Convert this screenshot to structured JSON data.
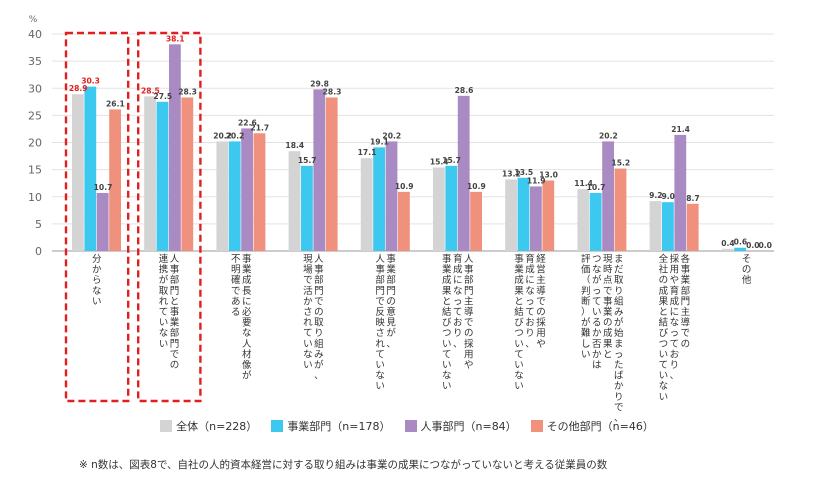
{
  "chart_data": {
    "type": "bar",
    "ylabel": "%",
    "ylim": [
      0,
      40
    ],
    "yticks": [
      0,
      5,
      10,
      15,
      20,
      25,
      30,
      35,
      40
    ],
    "categories": [
      "分からない",
      "人事部門と事業部門での連携が取れていない",
      "事業成長に必要な人材像が不明確である",
      "人事部門での取り組みが、現場で活かされていない",
      "事業部門の意見が、人事部門で反映されていない",
      "人事部門主導での採用や育成になっており、事業成果と結びついていない",
      "経営主導での採用や育成になっており、事業成果と結びついていない",
      "まだ取り組みが始まったばかりで、現時点で事業の成果とつながっているか否かは評価（判断）が難しい",
      "各事業部門主導での採用や育成になっており、全社の成果と結びついていない",
      "その他"
    ],
    "category_lines": [
      [
        "分からない"
      ],
      [
        "人事部門と事業部門での",
        "連携が取れていない"
      ],
      [
        "事業成長に必要な人材像が",
        "不明確である"
      ],
      [
        "人事部門での取り組みが、",
        "現場で活かされていない"
      ],
      [
        "事業部門の意見が、",
        "人事部門で反映されていない"
      ],
      [
        "人事部門主導での採用や",
        "育成になっており、",
        "事業成果と結びついていない"
      ],
      [
        "経営主導での採用や",
        "育成になっており、",
        "事業成果と結びついていない"
      ],
      [
        "まだ取り組みが始まったばかりで、",
        "現時点で事業の成果と",
        "つながっているか否かは",
        "評価（判断）が難しい"
      ],
      [
        "各事業部門主導での",
        "採用や育成になっており、",
        "全社の成果と結びついていない"
      ],
      [
        "その他"
      ]
    ],
    "series": [
      {
        "name": "全体（n=228）",
        "color": "#d4d4d4",
        "values": [
          28.9,
          28.5,
          20.2,
          18.4,
          17.1,
          15.4,
          13.2,
          11.4,
          9.2,
          0.4
        ]
      },
      {
        "name": "事業部門（n=178）",
        "color": "#3dc8f0",
        "values": [
          30.3,
          27.5,
          20.2,
          15.7,
          19.1,
          15.7,
          13.5,
          10.7,
          9.0,
          0.6
        ]
      },
      {
        "name": "人事部門（n=84）",
        "color": "#a98ac2",
        "values": [
          10.7,
          38.1,
          22.6,
          29.8,
          20.2,
          28.6,
          11.9,
          20.2,
          21.4,
          0.0
        ]
      },
      {
        "name": "その他部門（n=46）",
        "color": "#f0917e",
        "values": [
          26.1,
          28.3,
          21.7,
          28.3,
          10.9,
          10.9,
          13.0,
          15.2,
          8.7,
          0.0
        ]
      }
    ],
    "highlighted_labels": [
      {
        "category": 0,
        "series": 0
      },
      {
        "category": 0,
        "series": 1
      },
      {
        "category": 1,
        "series": 0
      },
      {
        "category": 1,
        "series": 2
      }
    ],
    "highlighted_categories": [
      0,
      1
    ],
    "highlight_color": "#e02020",
    "grid": true
  },
  "note": "※ n数は、図表8で、自社の人的資本経営に対する取り組みは事業の成果につながっていないと考える従業員の数"
}
